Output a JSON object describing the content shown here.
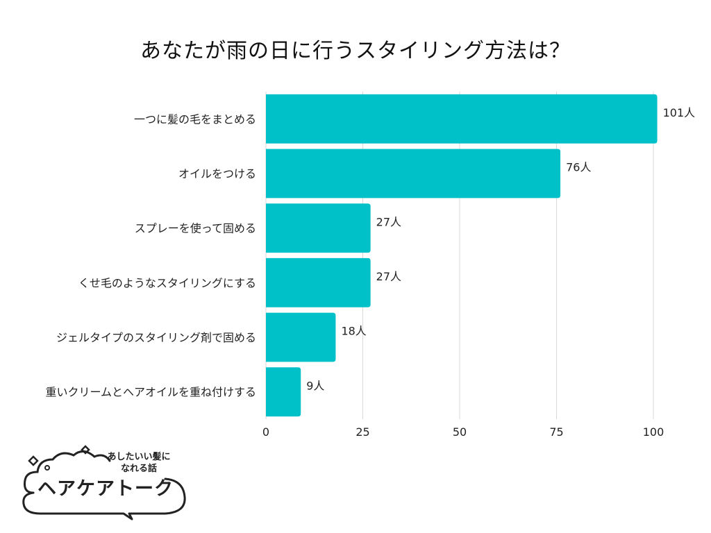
{
  "chart_data": {
    "type": "bar",
    "orientation": "horizontal",
    "title": "あなたが雨の日に行うスタイリング方法は？",
    "categories": [
      "一つに髪の毛をまとめる",
      "オイルをつける",
      "スプレーを使って固める",
      "くせ毛のようなスタイリングにする",
      "ジェルタイプのスタイリング剤で固める",
      "重いクリームとヘアオイルを重ね付けする"
    ],
    "values": [
      101,
      76,
      27,
      27,
      18,
      9
    ],
    "value_labels": [
      "101人",
      "76人",
      "27人",
      "27人",
      "18人",
      "9人"
    ],
    "xlim": [
      0,
      100
    ],
    "xticks": [
      0,
      25,
      50,
      75,
      100
    ],
    "xlabel": "",
    "ylabel": "",
    "grid": true,
    "bar_color": "#00C0C8"
  },
  "logo": {
    "tagline_line1": "あしたいい髪に",
    "tagline_line2": "なれる話",
    "name": "ヘアケアトーク"
  }
}
